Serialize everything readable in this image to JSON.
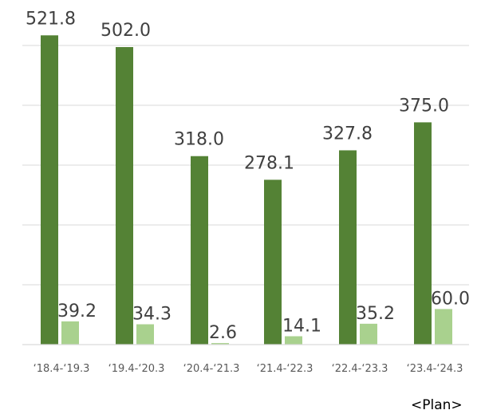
{
  "chart_data": {
    "type": "bar",
    "categories": [
      "‘18.4-‘19.3",
      "‘19.4-‘20.3",
      "‘20.4-‘21.3",
      "‘21.4-‘22.3",
      "‘22.4-‘23.3",
      "‘23.4-‘24.3"
    ],
    "series": [
      {
        "values": [
          521.8,
          502.0,
          318.0,
          278.1,
          327.8,
          375.0
        ],
        "labels": [
          "521.8",
          "502.0",
          "318.0",
          "278.1",
          "327.8",
          "375.0"
        ],
        "color": "#548235"
      },
      {
        "values": [
          39.2,
          34.3,
          2.6,
          14.1,
          35.2,
          60.0
        ],
        "labels": [
          "39.2",
          "34.3",
          "2.6",
          "14.1",
          "35.2",
          "60.0"
        ],
        "color": "#a9d18e"
      }
    ],
    "ylim": [
      0,
      500
    ],
    "grid": true,
    "legend": false,
    "annotation": "<Plan>"
  }
}
